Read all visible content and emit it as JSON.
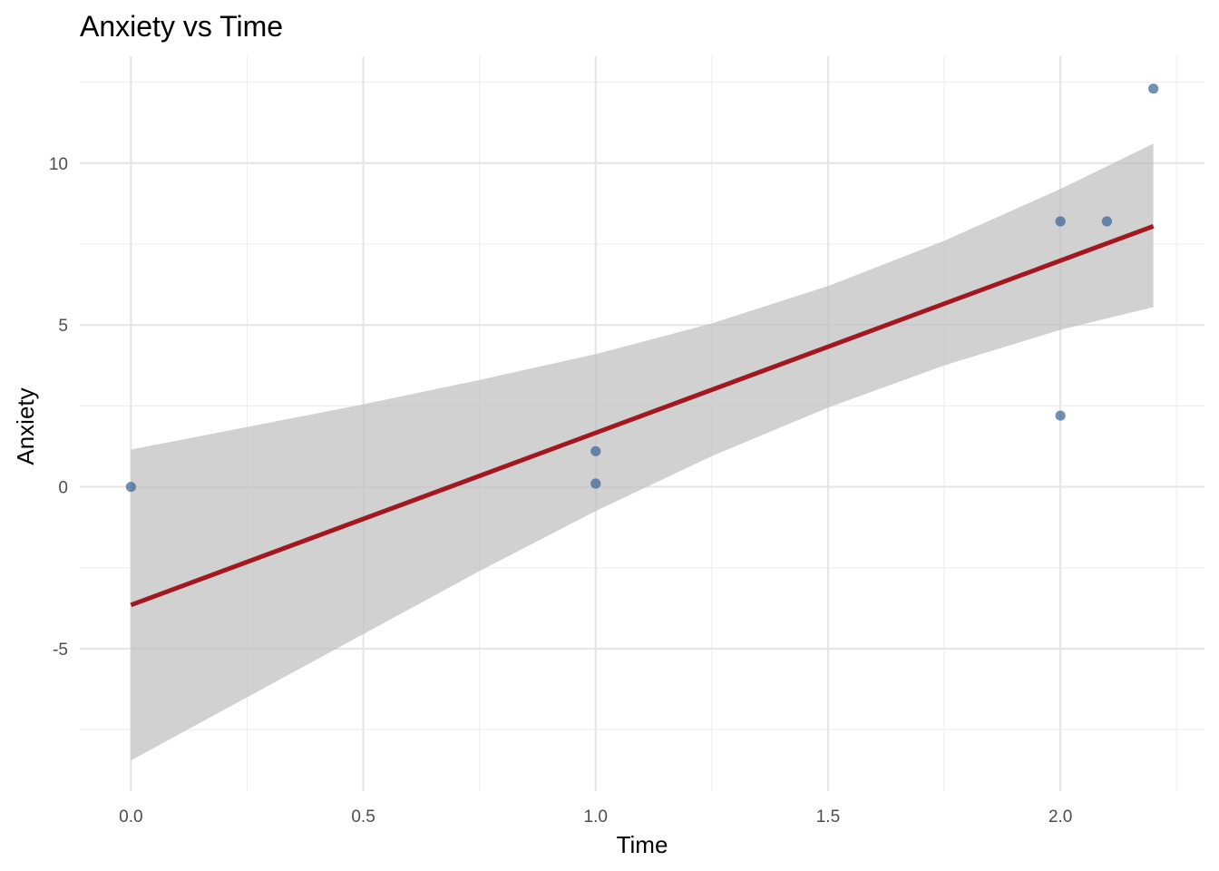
{
  "chart_data": {
    "type": "scatter",
    "title": "Anxiety vs Time",
    "xlabel": "Time",
    "ylabel": "Anxiety",
    "xlim": [
      -0.11,
      2.31
    ],
    "ylim": [
      -9.4,
      13.3
    ],
    "x_ticks": [
      0.0,
      0.5,
      1.0,
      1.5,
      2.0
    ],
    "x_tick_labels": [
      "0.0",
      "0.5",
      "1.0",
      "1.5",
      "2.0"
    ],
    "y_ticks": [
      -5,
      0,
      5,
      10
    ],
    "y_tick_labels": [
      "-5",
      "0",
      "5",
      "10"
    ],
    "grid": true,
    "legend": "none",
    "points": {
      "name": "",
      "color": "#3a6596",
      "x": [
        0.0,
        1.0,
        1.0,
        2.0,
        2.0,
        2.1,
        2.2
      ],
      "y": [
        0.0,
        1.1,
        0.1,
        8.2,
        2.2,
        8.2,
        12.3
      ]
    },
    "fit_line": {
      "name": "",
      "type": "linear",
      "color": "#a31820",
      "x": [
        0.0,
        2.2
      ],
      "y": [
        -3.65,
        8.05
      ]
    },
    "confidence_band": {
      "name": "",
      "color": "#bfbfbf",
      "x": [
        0.0,
        0.25,
        0.5,
        0.75,
        1.0,
        1.25,
        1.5,
        1.75,
        2.0,
        2.2
      ],
      "lower": [
        -8.45,
        -6.5,
        -4.55,
        -2.6,
        -0.75,
        0.95,
        2.45,
        3.75,
        4.85,
        5.55
      ],
      "upper": [
        1.15,
        1.85,
        2.55,
        3.3,
        4.1,
        5.05,
        6.2,
        7.6,
        9.2,
        10.6
      ]
    }
  }
}
